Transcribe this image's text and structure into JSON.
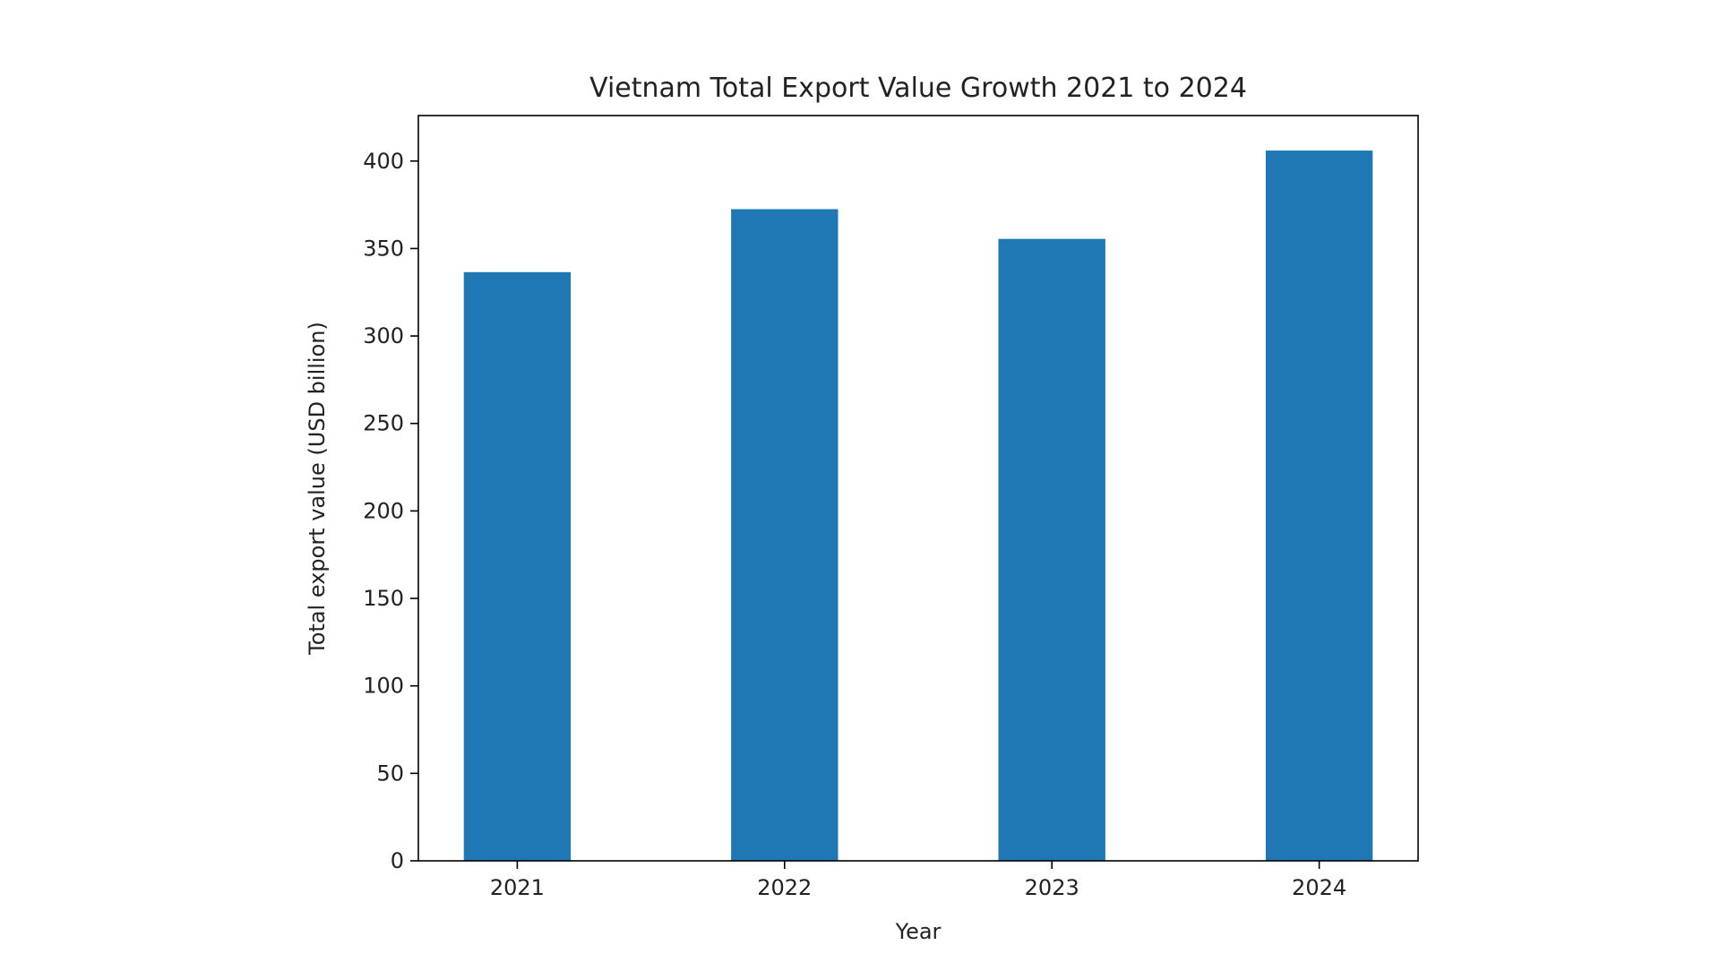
{
  "chart_data": {
    "type": "bar",
    "title": "Vietnam Total Export Value Growth 2021 to 2024",
    "xlabel": "Year",
    "ylabel": "Total export value (USD billion)",
    "categories": [
      "2021",
      "2022",
      "2023",
      "2024"
    ],
    "values": [
      336.5,
      372.5,
      355.5,
      406
    ],
    "ylim": [
      0,
      426
    ],
    "yticks": [
      0,
      50,
      100,
      150,
      200,
      250,
      300,
      350,
      400
    ],
    "grid": false,
    "bar_color": "#1f77b4"
  }
}
